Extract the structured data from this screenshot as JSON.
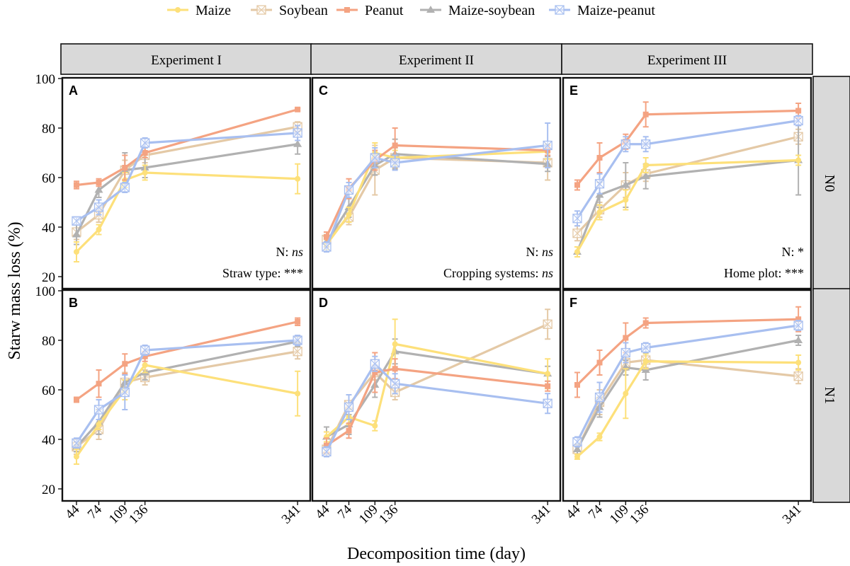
{
  "chart_data": {
    "type": "line",
    "legend": {
      "position": "top",
      "entries": [
        {
          "name": "Maize",
          "color": "#fde07a",
          "marker": "circle"
        },
        {
          "name": "Soybean",
          "color": "#e4c9a6",
          "marker": "boxx"
        },
        {
          "name": "Peanut",
          "color": "#f4a382",
          "marker": "square"
        },
        {
          "name": "Maize-soybean",
          "color": "#b1b1b1",
          "marker": "triangle"
        },
        {
          "name": "Maize-peanut",
          "color": "#a8bff0",
          "marker": "boxx"
        }
      ]
    },
    "xlabel": "Decomposition time (day)",
    "ylabel": "Starw mass loss (%)",
    "x": [
      44,
      74,
      109,
      136,
      341
    ],
    "x_ticks": [
      "44",
      "74",
      "109",
      "136",
      "341"
    ],
    "xlim": [
      25,
      358
    ],
    "y_ticks": [
      "20",
      "40",
      "60",
      "80",
      "100"
    ],
    "ylim": [
      20,
      100
    ],
    "columns": [
      "Experiment I",
      "Experiment II",
      "Experiment III"
    ],
    "rows": [
      "N0",
      "N1"
    ],
    "panels": [
      {
        "label": "A",
        "column": 0,
        "row": 0,
        "annotations": [
          {
            "prefix": "N: ",
            "value": "ns",
            "italic": true
          },
          {
            "prefix": "Straw type: ",
            "value": "***",
            "italic": false
          }
        ],
        "series": [
          {
            "name": "Maize",
            "values": [
              30,
              39,
              59,
              62,
              59.5
            ],
            "errors": [
              4,
              2,
              3,
              3,
              6
            ]
          },
          {
            "name": "Soybean",
            "values": [
              38,
              45,
              63,
              69,
              80.5
            ],
            "errors": [
              3,
              3,
              4,
              3,
              2
            ]
          },
          {
            "name": "Peanut",
            "values": [
              57,
              58,
              64,
              70,
              87.5
            ],
            "errors": [
              1.5,
              1.5,
              5,
              2,
              0.5
            ]
          },
          {
            "name": "Maize-soybean",
            "values": [
              37,
              55,
              63,
              64,
              73.5
            ],
            "errors": [
              4,
              3,
              7,
              4,
              4
            ]
          },
          {
            "name": "Maize-peanut",
            "values": [
              42.5,
              48,
              56,
              74,
              78
            ],
            "errors": [
              1.5,
              3,
              2,
              2,
              3
            ]
          }
        ]
      },
      {
        "label": "B",
        "column": 0,
        "row": 1,
        "annotations": [],
        "series": [
          {
            "name": "Maize",
            "values": [
              33,
              46,
              60,
              70,
              58.5
            ],
            "errors": [
              3,
              2,
              4,
              3,
              9
            ]
          },
          {
            "name": "Soybean",
            "values": [
              37,
              44,
              63,
              65,
              75.5
            ],
            "errors": [
              3,
              4,
              4,
              3,
              3
            ]
          },
          {
            "name": "Peanut",
            "values": [
              56,
              62.5,
              70.5,
              73.5,
              87.5
            ],
            "errors": [
              1,
              5.5,
              4,
              2,
              1.5
            ]
          },
          {
            "name": "Maize-soybean",
            "values": [
              37,
              47,
              63,
              67,
              79.5
            ],
            "errors": [
              2,
              5,
              3,
              3,
              2
            ]
          },
          {
            "name": "Maize-peanut",
            "values": [
              38.5,
              52,
              59,
              76,
              80
            ],
            "errors": [
              2,
              4,
              7,
              2,
              2
            ]
          }
        ]
      },
      {
        "label": "C",
        "column": 1,
        "row": 0,
        "annotations": [
          {
            "prefix": "N: ",
            "value": "ns",
            "italic": true
          },
          {
            "prefix": "Cropping systems: ",
            "value": "ns",
            "italic": true
          }
        ],
        "series": [
          {
            "name": "Maize",
            "values": [
              33,
              45,
              70,
              68,
              70.5
            ],
            "errors": [
              2,
              3,
              4,
              3,
              3
            ]
          },
          {
            "name": "Soybean",
            "values": [
              35,
              44,
              63,
              68,
              66
            ],
            "errors": [
              2,
              3,
              10,
              4,
              7
            ]
          },
          {
            "name": "Peanut",
            "values": [
              36,
              55.5,
              67,
              73,
              71
            ],
            "errors": [
              2,
              4,
              4,
              7,
              2
            ]
          },
          {
            "name": "Maize-soybean",
            "values": [
              34,
              48,
              65,
              69.5,
              65.5
            ],
            "errors": [
              2,
              4,
              4,
              6,
              3
            ]
          },
          {
            "name": "Maize-peanut",
            "values": [
              32,
              55,
              68,
              66,
              73
            ],
            "errors": [
              2,
              3,
              4,
              3,
              9
            ]
          }
        ]
      },
      {
        "label": "D",
        "column": 1,
        "row": 1,
        "annotations": [],
        "series": [
          {
            "name": "Maize",
            "values": [
              41,
              49,
              45.5,
              78.5,
              66.5
            ],
            "errors": [
              2,
              3,
              2,
              10,
              6
            ]
          },
          {
            "name": "Soybean",
            "values": [
              36,
              54,
              67,
              59,
              86.5
            ],
            "errors": [
              2,
              4,
              3,
              3,
              6
            ]
          },
          {
            "name": "Peanut",
            "values": [
              37.5,
              43.5,
              67,
              68.5,
              61.5
            ],
            "errors": [
              3,
              3,
              8,
              4,
              2
            ]
          },
          {
            "name": "Maize-soybean",
            "values": [
              41,
              46,
              62,
              75.5,
              66.5
            ],
            "errors": [
              4,
              4,
              5,
              5,
              3
            ]
          },
          {
            "name": "Maize-peanut",
            "values": [
              35,
              53,
              70.5,
              62.5,
              54.5
            ],
            "errors": [
              2,
              5,
              3,
              4,
              4
            ]
          }
        ]
      },
      {
        "label": "E",
        "column": 2,
        "row": 0,
        "annotations": [
          {
            "prefix": "N: ",
            "value": "*",
            "italic": false
          },
          {
            "prefix": "Home plot: ",
            "value": "***",
            "italic": false
          }
        ],
        "series": [
          {
            "name": "Maize",
            "values": [
              30,
              46,
              51,
              65,
              67
            ],
            "errors": [
              2,
              3,
              4,
              3,
              2
            ]
          },
          {
            "name": "Soybean",
            "values": [
              37.5,
              47,
              57,
              61.5,
              76.5
            ],
            "errors": [
              3,
              3,
              5,
              3,
              3
            ]
          },
          {
            "name": "Peanut",
            "values": [
              57,
              68,
              74.5,
              85.5,
              87
            ],
            "errors": [
              2,
              6,
              3,
              5,
              3
            ]
          },
          {
            "name": "Maize-soybean",
            "values": [
              30,
              53,
              57,
              60.5,
              67
            ],
            "errors": [
              2,
              5,
              9,
              5,
              14
            ]
          },
          {
            "name": "Maize-peanut",
            "values": [
              43.5,
              57.5,
              73.5,
              73.5,
              83
            ],
            "errors": [
              3,
              4,
              3,
              3,
              2
            ]
          }
        ]
      },
      {
        "label": "F",
        "column": 2,
        "row": 1,
        "annotations": [],
        "series": [
          {
            "name": "Maize",
            "values": [
              33,
              41,
              58.5,
              71.5,
              71
            ],
            "errors": [
              1,
              1.5,
              10,
              3,
              3
            ]
          },
          {
            "name": "Soybean",
            "values": [
              36,
              55,
              71,
              72,
              65.5
            ],
            "errors": [
              2,
              5,
              3,
              3,
              3
            ]
          },
          {
            "name": "Peanut",
            "values": [
              62,
              71,
              81,
              87,
              88.5
            ],
            "errors": [
              5,
              5,
              6,
              2,
              5
            ]
          },
          {
            "name": "Maize-soybean",
            "values": [
              36,
              53,
              69,
              68,
              80
            ],
            "errors": [
              2,
              4,
              3,
              4,
              2
            ]
          },
          {
            "name": "Maize-peanut",
            "values": [
              39,
              57,
              75,
              77,
              86
            ],
            "errors": [
              2,
              6,
              4,
              2,
              2
            ]
          }
        ]
      }
    ]
  }
}
